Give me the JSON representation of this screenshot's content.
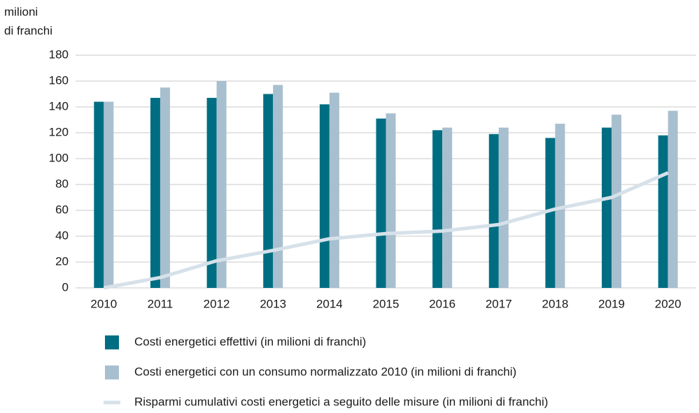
{
  "chart_data": {
    "type": "bar",
    "y_label": [
      "milioni",
      "di franchi"
    ],
    "categories": [
      "2010",
      "2011",
      "2012",
      "2013",
      "2014",
      "2015",
      "2016",
      "2017",
      "2018",
      "2019",
      "2020"
    ],
    "series": [
      {
        "name": "Costi energetici effettivi (in milioni di franchi)",
        "color": "#006e82",
        "type": "bar",
        "values": [
          144,
          147,
          147,
          150,
          142,
          131,
          122,
          119,
          116,
          124,
          118
        ]
      },
      {
        "name": "Costi energetici con un consumo normalizzato 2010 (in milioni di franchi)",
        "color": "#a8bfcf",
        "type": "bar",
        "values": [
          144,
          155,
          160,
          157,
          151,
          135,
          124,
          124,
          127,
          134,
          137
        ]
      },
      {
        "name": "Risparmi cumulativi costi energetici a seguito delle misure (in milioni di franchi)",
        "color": "#d6e1ea",
        "type": "line",
        "values": [
          0,
          8,
          21,
          29,
          38,
          42,
          44,
          49,
          61,
          70,
          89
        ]
      }
    ],
    "ylim": [
      0,
      180
    ],
    "yticks": [
      0,
      20,
      40,
      60,
      80,
      100,
      120,
      140,
      160,
      180
    ],
    "grid": true
  }
}
